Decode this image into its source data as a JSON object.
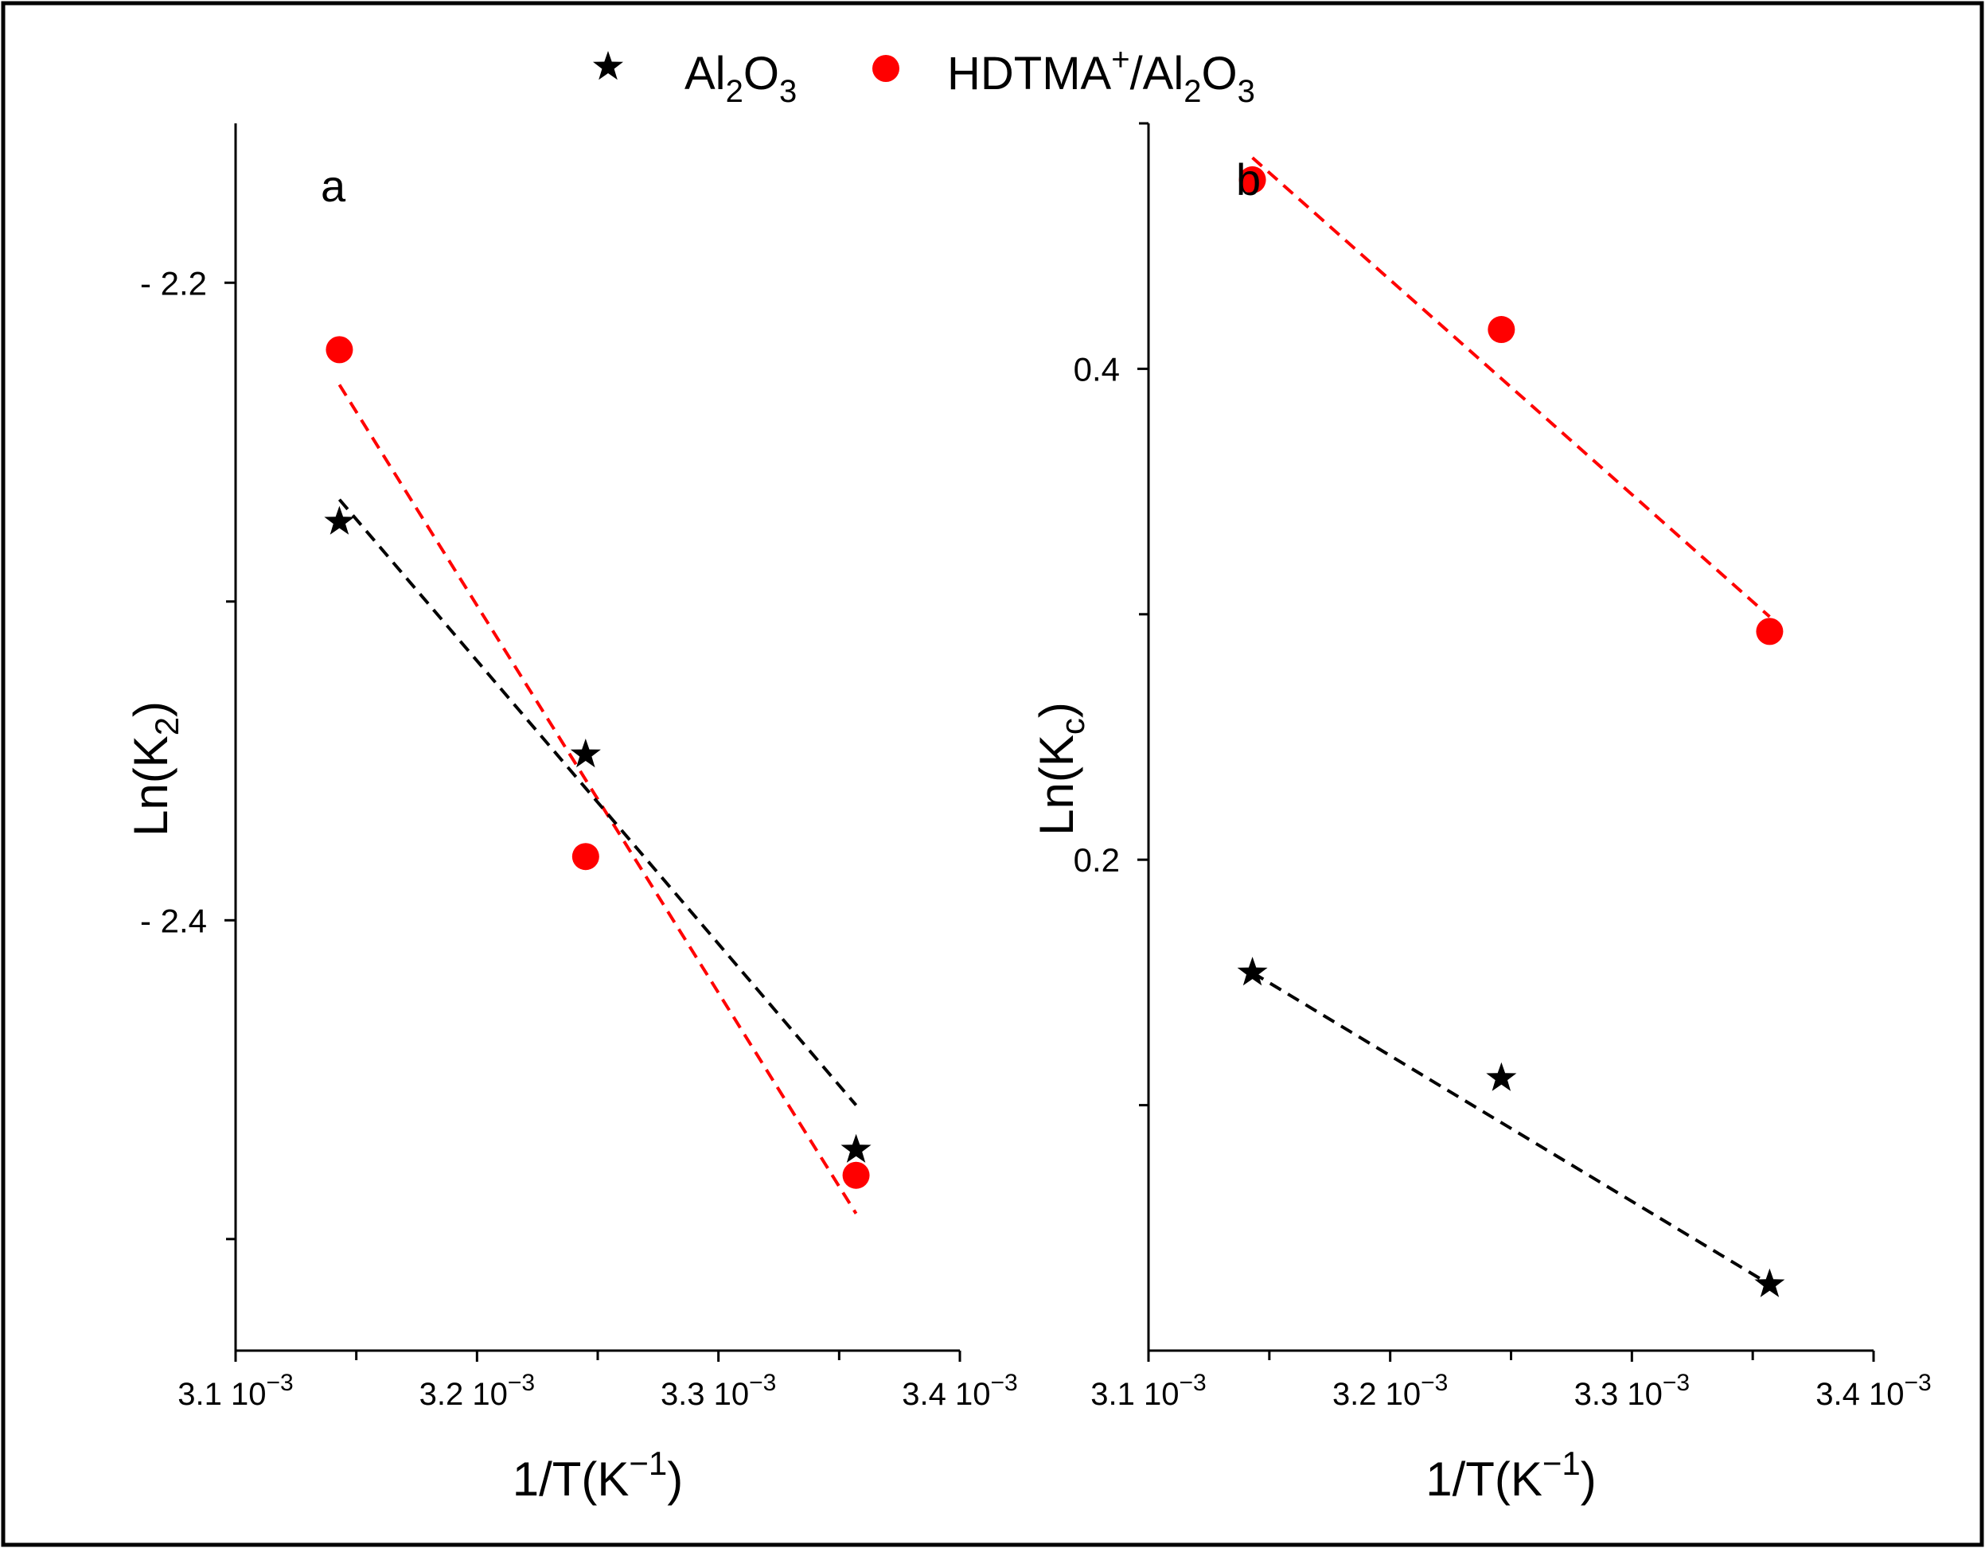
{
  "legend": {
    "position": "top-center",
    "entries": [
      {
        "label": "Al2O3",
        "marker": "star",
        "color": "#000000"
      },
      {
        "label": "HDTMA+/Al2O3",
        "marker": "circle",
        "color": "#ff0000"
      }
    ]
  },
  "chart_data": [
    {
      "type": "scatter",
      "panel_label": "a",
      "xlabel": "1/T(K−1)",
      "ylabel": "Ln(K2)",
      "xlim": [
        0.0031,
        0.0034
      ],
      "ylim": [
        -2.535,
        -2.15
      ],
      "x_ticks": [
        {
          "value": 0.0031,
          "mantissa": "3.1",
          "exponent_base": "10",
          "exponent": "−3"
        },
        {
          "value": 0.0032,
          "mantissa": "3.2",
          "exponent_base": "10",
          "exponent": "−3"
        },
        {
          "value": 0.0033,
          "mantissa": "3.3",
          "exponent_base": "10",
          "exponent": "−3"
        },
        {
          "value": 0.0034,
          "mantissa": "3.4",
          "exponent_base": "10",
          "exponent": "−3"
        }
      ],
      "x_minor_ticks": [
        0.00315,
        0.00325,
        0.00335
      ],
      "y_ticks": [
        {
          "value": -2.2,
          "label": "- 2.2"
        },
        {
          "value": -2.4,
          "label": "- 2.4"
        }
      ],
      "y_minor_ticks": [
        -2.3,
        -2.5
      ],
      "series": [
        {
          "name": "HDTMA+/Al2O3",
          "marker": "circle",
          "color": "#ff0000",
          "x": [
            0.003143,
            0.003245,
            0.003357
          ],
          "y": [
            -2.221,
            -2.38,
            -2.48
          ],
          "fit": {
            "x": [
              0.003143,
              0.003357
            ],
            "y": [
              -2.232,
              -2.492
            ]
          }
        },
        {
          "name": "Al2O3",
          "marker": "star",
          "color": "#000000",
          "x": [
            0.003143,
            0.003245,
            0.003357
          ],
          "y": [
            -2.275,
            -2.348,
            -2.472
          ],
          "fit": {
            "x": [
              0.003143,
              0.003357
            ],
            "y": [
              -2.268,
              -2.458
            ]
          }
        }
      ]
    },
    {
      "type": "scatter",
      "panel_label": "b",
      "xlabel": "1/T(K−1)",
      "ylabel": "Ln(Kc)",
      "xlim": [
        0.0031,
        0.0034
      ],
      "ylim": [
        0.0,
        0.5
      ],
      "x_ticks": [
        {
          "value": 0.0031,
          "mantissa": "3.1",
          "exponent_base": "10",
          "exponent": "−3"
        },
        {
          "value": 0.0032,
          "mantissa": "3.2",
          "exponent_base": "10",
          "exponent": "−3"
        },
        {
          "value": 0.0033,
          "mantissa": "3.3",
          "exponent_base": "10",
          "exponent": "−3"
        },
        {
          "value": 0.0034,
          "mantissa": "3.4",
          "exponent_base": "10",
          "exponent": "−3"
        }
      ],
      "x_minor_ticks": [
        0.00315,
        0.00325,
        0.00335
      ],
      "y_ticks": [
        {
          "value": 0.4,
          "label": "0.4"
        },
        {
          "value": 0.2,
          "label": "0.2"
        }
      ],
      "y_minor_ticks": [
        0.1,
        0.3,
        0.5
      ],
      "series": [
        {
          "name": "HDTMA+/Al2O3",
          "marker": "circle",
          "color": "#ff0000",
          "x": [
            0.003143,
            0.003246,
            0.003357
          ],
          "y": [
            0.477,
            0.416,
            0.293
          ],
          "fit": {
            "x": [
              0.003143,
              0.003357
            ],
            "y": [
              0.486,
              0.299
            ]
          }
        },
        {
          "name": "Al2O3",
          "marker": "star",
          "color": "#000000",
          "x": [
            0.003143,
            0.003246,
            0.003357
          ],
          "y": [
            0.154,
            0.111,
            0.027
          ],
          "fit": {
            "x": [
              0.003143,
              0.003357
            ],
            "y": [
              0.154,
              0.027
            ]
          }
        }
      ]
    }
  ]
}
